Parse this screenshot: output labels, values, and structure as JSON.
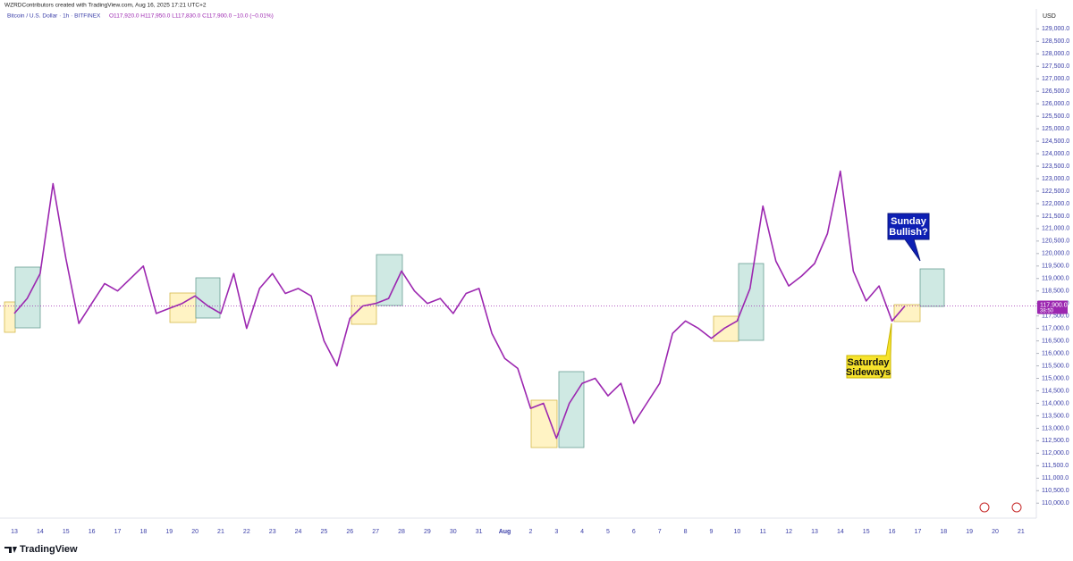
{
  "header": {
    "credit": "WZRDContributors created with TradingView.com, Aug 16, 2025 17:21 UTC+2",
    "symbol": "Bitcoin / U.S. Dollar · 1h · BITFINEX",
    "ohlc": "O117,920.0 H117,950.0 L117,830.0 C117,900.0 −10.0 (−0.01%)"
  },
  "footer": {
    "brand": "TradingView"
  },
  "chart_data": {
    "type": "line",
    "axis_unit": "USD",
    "grid": false,
    "categories": [
      "13",
      null,
      "14",
      null,
      "15",
      null,
      "16",
      null,
      "17",
      null,
      "18",
      null,
      "19",
      null,
      "20",
      null,
      "21",
      null,
      "22",
      null,
      "23",
      null,
      "24",
      null,
      "25",
      null,
      "26",
      null,
      "27",
      null,
      "28",
      null,
      "29",
      null,
      "30",
      null,
      "31",
      null,
      "Aug",
      null,
      "2",
      null,
      "3",
      null,
      "4",
      null,
      "5",
      null,
      "6",
      null,
      "7",
      null,
      "8",
      null,
      "9",
      null,
      "10",
      null,
      "11",
      null,
      "12",
      null,
      "13",
      null,
      "14",
      null,
      "15",
      null,
      "16",
      null,
      "17",
      null,
      "18",
      null,
      "19",
      null,
      "20",
      null,
      "21",
      null
    ],
    "series": [
      {
        "name": "BTCUSD",
        "color": "#9c27b0",
        "values": [
          117600,
          118200,
          119200,
          122800,
          119800,
          117200,
          118000,
          118800,
          118500,
          119000,
          119500,
          117600,
          117800,
          118000,
          118300,
          117900,
          117600,
          119200,
          117000,
          118600,
          119200,
          118400,
          118600,
          118300,
          116500,
          115500,
          117400,
          117900,
          118000,
          118200,
          119300,
          118500,
          118000,
          118200,
          117600,
          118400,
          118600,
          116800,
          115800,
          115400,
          113800,
          114000,
          112600,
          114000,
          114800,
          115000,
          114300,
          114800,
          113200,
          114000,
          114800,
          116800,
          117300,
          117000,
          116600,
          117000,
          117300,
          118600,
          121900,
          119700,
          118700,
          119100,
          119600,
          120800,
          123300,
          119300,
          118100,
          118700,
          117300,
          117900,
          null,
          null,
          null,
          null,
          null,
          null,
          null,
          null,
          null,
          null
        ]
      }
    ],
    "last_price": {
      "value": 117900,
      "label": "117,900.0",
      "countdown": "38:50"
    },
    "annotations": [
      {
        "text": [
          "Sunday",
          "Bullish?"
        ]
      },
      {
        "text": [
          "Saturday",
          "Sideways"
        ]
      }
    ],
    "ylim": [
      109400,
      129800
    ],
    "yticks": [
      {
        "value": 110000,
        "label": "110,000.0"
      },
      {
        "value": 110500,
        "label": "110,500.0"
      },
      {
        "value": 111000,
        "label": "111,000.0"
      },
      {
        "value": 111500,
        "label": "111,500.0"
      },
      {
        "value": 112000,
        "label": "112,000.0"
      },
      {
        "value": 112500,
        "label": "112,500.0"
      },
      {
        "value": 113000,
        "label": "113,000.0"
      },
      {
        "value": 113500,
        "label": "113,500.0"
      },
      {
        "value": 114000,
        "label": "114,000.0"
      },
      {
        "value": 114500,
        "label": "114,500.0"
      },
      {
        "value": 115000,
        "label": "115,000.0"
      },
      {
        "value": 115500,
        "label": "115,500.0"
      },
      {
        "value": 116000,
        "label": "116,000.0"
      },
      {
        "value": 116500,
        "label": "116,500.0"
      },
      {
        "value": 117000,
        "label": "117,000.0"
      },
      {
        "value": 117500,
        "label": "117,500.0"
      },
      {
        "value": 118000,
        "label": "118,000.0"
      },
      {
        "value": 118500,
        "label": "118,500.0"
      },
      {
        "value": 119000,
        "label": "119,000.0"
      },
      {
        "value": 119500,
        "label": "119,500.0"
      },
      {
        "value": 120000,
        "label": "120,000.0"
      },
      {
        "value": 120500,
        "label": "120,500.0"
      },
      {
        "value": 121000,
        "label": "121,000.0"
      },
      {
        "value": 121500,
        "label": "121,500.0"
      },
      {
        "value": 122000,
        "label": "122,000.0"
      },
      {
        "value": 122500,
        "label": "122,500.0"
      },
      {
        "value": 123000,
        "label": "123,000.0"
      },
      {
        "value": 123500,
        "label": "123,500.0"
      },
      {
        "value": 124000,
        "label": "124,000.0"
      },
      {
        "value": 124500,
        "label": "124,500.0"
      },
      {
        "value": 125000,
        "label": "125,000.0"
      },
      {
        "value": 125500,
        "label": "125,500.0"
      },
      {
        "value": 126000,
        "label": "126,000.0"
      },
      {
        "value": 126500,
        "label": "126,500.0"
      },
      {
        "value": 127000,
        "label": "127,000.0"
      },
      {
        "value": 127500,
        "label": "127,500.0"
      },
      {
        "value": 128000,
        "label": "128,000.0"
      },
      {
        "value": 128500,
        "label": "128,500.0"
      },
      {
        "value": 129000,
        "label": "129,000.0"
      }
    ]
  }
}
